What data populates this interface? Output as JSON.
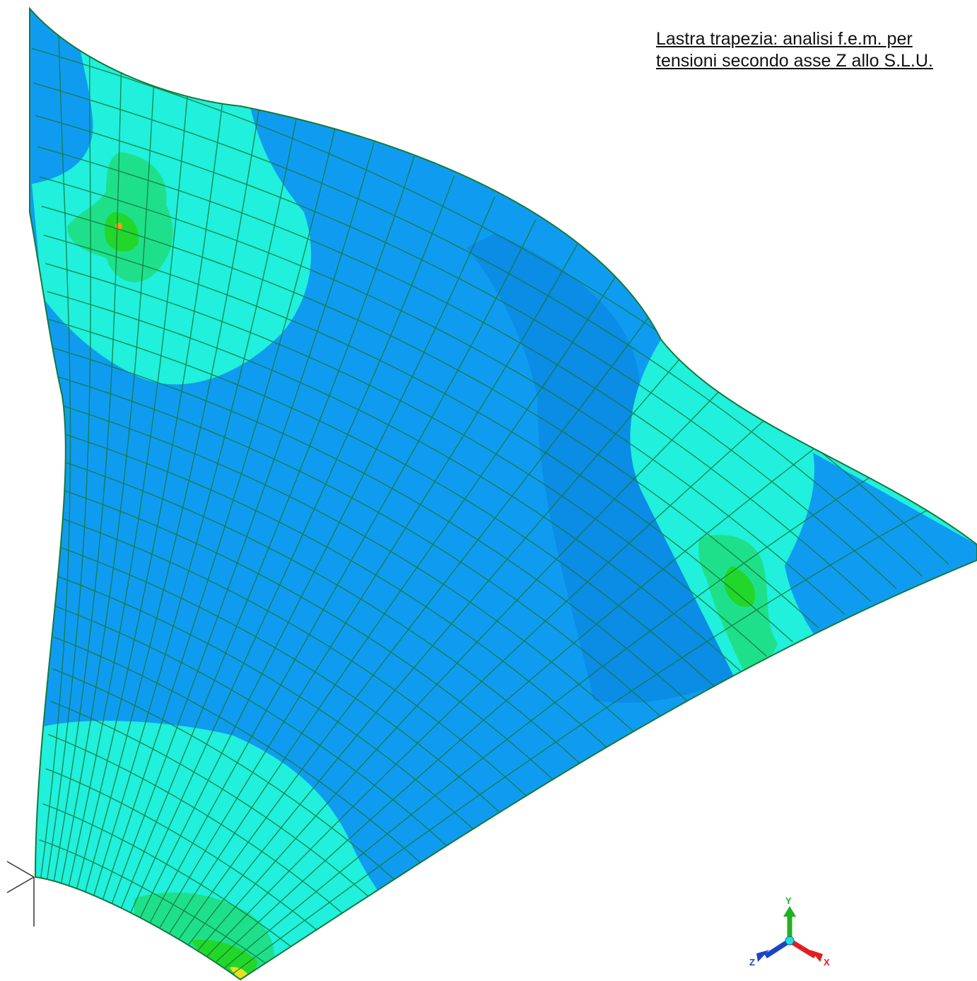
{
  "caption": {
    "line1": "Lastra trapezia: analisi f.e.m. per",
    "line2": "tensioni secondo asse Z allo S.L.U."
  },
  "triad": {
    "y_label": "Y",
    "x_label": "X",
    "z_label": "Z"
  },
  "colors": {
    "background": "#ffffff",
    "mesh_line": "#137a3a",
    "stress_low": "#0f9cf0",
    "stress_low_dark": "#0a7fd6",
    "stress_mid": "#20f2dc",
    "stress_mid_high": "#1fe08a",
    "stress_high": "#22d72a",
    "stress_peak": "#e0e020",
    "stress_max": "#ff7a00",
    "axis_x": "#e02020",
    "axis_y": "#20b020",
    "axis_z": "#1a44c8",
    "axis_origin": "#20e0e0"
  }
}
